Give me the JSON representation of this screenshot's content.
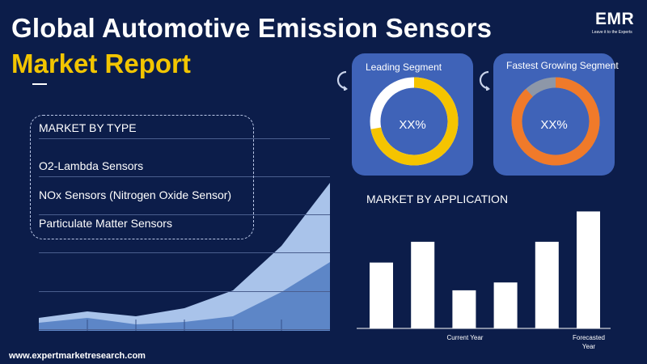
{
  "header": {
    "title_line1": "Global Automotive Emission Sensors",
    "title_line2": "Market Report"
  },
  "logo": {
    "text": "EMR",
    "tagline": "Leave it to the Experts"
  },
  "market_by_type": {
    "heading": "MARKET BY TYPE",
    "items": [
      "O2-Lambda Sensors",
      "NOx Sensors (Nitrogen Oxide Sensor)",
      "Particulate Matter Sensors"
    ]
  },
  "leading_segment": {
    "title": "Leading Segment",
    "value": "XX%"
  },
  "fastest_segment": {
    "title": "Fastest Growing Segment",
    "value": "XX%"
  },
  "market_by_application": {
    "heading": "MARKET BY APPLICATION",
    "label_current": "Current Year",
    "label_forecast_line1": "Forecasted",
    "label_forecast_line2": "Year"
  },
  "footer": {
    "website": "www.expertmarketresearch.com"
  },
  "colors": {
    "background": "#0c1d4a",
    "title_yellow": "#f2c500",
    "card_blue": "#3f63b8",
    "donut_yellow": "#f5c400",
    "donut_orange": "#f07a2a",
    "area_light": "#a9c3ea",
    "area_dark": "#5d86c7"
  },
  "chart_data": [
    {
      "type": "area",
      "title": "",
      "series": [
        {
          "values": [
            16,
            24,
            18,
            28,
            50,
            105,
            183
          ]
        },
        {
          "values": [
            10,
            16,
            8,
            11,
            18,
            48,
            85
          ]
        }
      ]
    },
    {
      "type": "pie",
      "title": "Leading Segment",
      "values": [
        72,
        28
      ]
    },
    {
      "type": "pie",
      "title": "Fastest Growing Segment",
      "values": [
        88,
        12
      ]
    },
    {
      "type": "bar",
      "title": "MARKET BY APPLICATION",
      "categories": [
        "",
        "",
        "Current Year",
        "",
        "",
        "Forecasted Year"
      ],
      "values": [
        76,
        100,
        44,
        53,
        100,
        135
      ],
      "ylim": [
        0,
        140
      ]
    }
  ]
}
